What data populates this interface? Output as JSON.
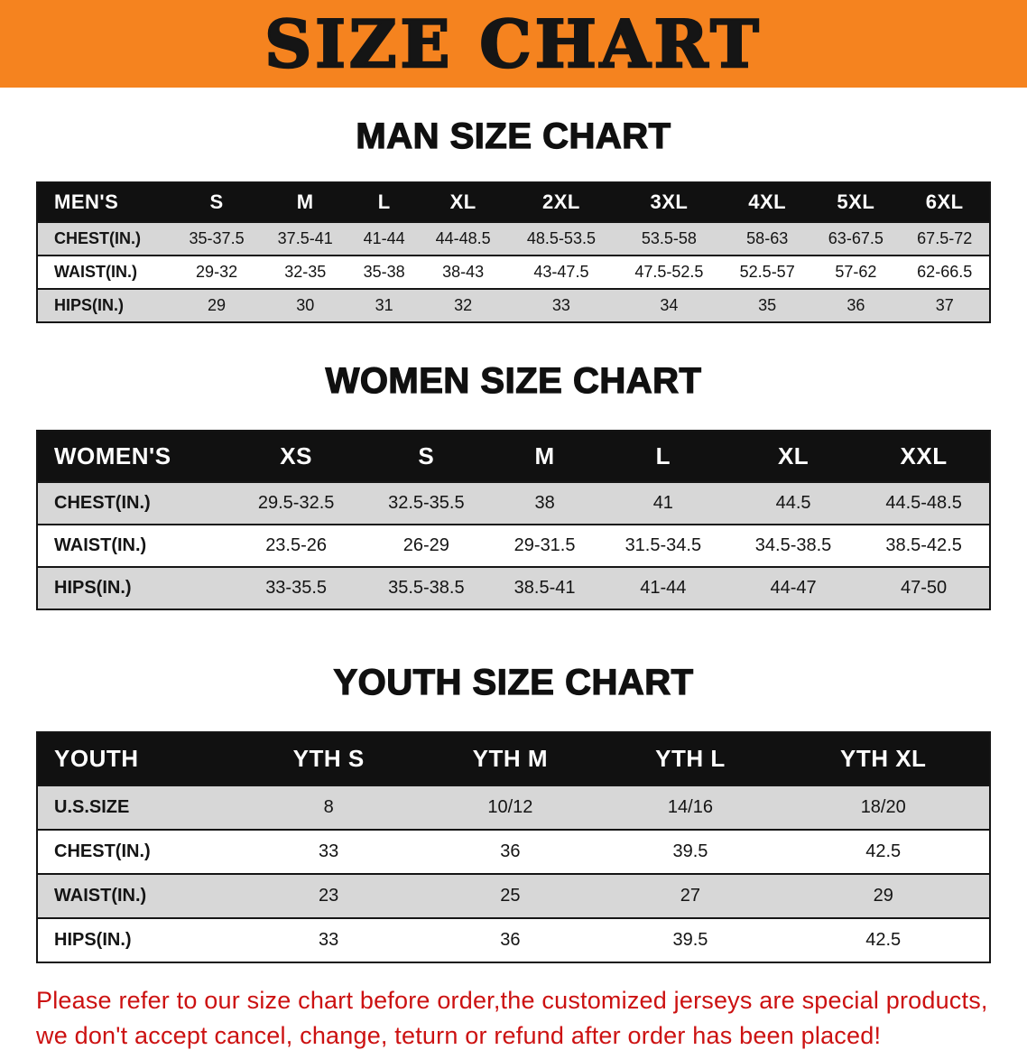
{
  "banner": {
    "title": "SIZE CHART",
    "background_color": "#F5831F"
  },
  "colors": {
    "table_header_bg": "#111111",
    "row_stripe": "#d7d7d7"
  },
  "sections": [
    {
      "key": "men",
      "heading": "MAN SIZE CHART",
      "table": {
        "header": [
          "MEN'S",
          "S",
          "M",
          "L",
          "XL",
          "2XL",
          "3XL",
          "4XL",
          "5XL",
          "6XL"
        ],
        "rows": [
          {
            "label": "CHEST(IN.)",
            "values": [
              "35-37.5",
              "37.5-41",
              "41-44",
              "44-48.5",
              "48.5-53.5",
              "53.5-58",
              "58-63",
              "63-67.5",
              "67.5-72"
            ]
          },
          {
            "label": "WAIST(IN.)",
            "values": [
              "29-32",
              "32-35",
              "35-38",
              "38-43",
              "43-47.5",
              "47.5-52.5",
              "52.5-57",
              "57-62",
              "62-66.5"
            ]
          },
          {
            "label": "HIPS(IN.)",
            "values": [
              "29",
              "30",
              "31",
              "32",
              "33",
              "34",
              "35",
              "36",
              "37"
            ]
          }
        ]
      }
    },
    {
      "key": "women",
      "heading": "WOMEN SIZE CHART",
      "table": {
        "header": [
          "WOMEN'S",
          "XS",
          "S",
          "M",
          "L",
          "XL",
          "XXL"
        ],
        "rows": [
          {
            "label": "CHEST(IN.)",
            "values": [
              "29.5-32.5",
              "32.5-35.5",
              "38",
              "41",
              "44.5",
              "44.5-48.5"
            ]
          },
          {
            "label": "WAIST(IN.)",
            "values": [
              "23.5-26",
              "26-29",
              "29-31.5",
              "31.5-34.5",
              "34.5-38.5",
              "38.5-42.5"
            ]
          },
          {
            "label": "HIPS(IN.)",
            "values": [
              "33-35.5",
              "35.5-38.5",
              "38.5-41",
              "41-44",
              "44-47",
              "47-50"
            ]
          }
        ]
      }
    },
    {
      "key": "youth",
      "heading": "YOUTH SIZE CHART",
      "table": {
        "header": [
          "YOUTH",
          "YTH S",
          "YTH M",
          "YTH L",
          "YTH XL"
        ],
        "rows": [
          {
            "label": "U.S.SIZE",
            "values": [
              "8",
              "10/12",
              "14/16",
              "18/20"
            ]
          },
          {
            "label": "CHEST(IN.)",
            "values": [
              "33",
              "36",
              "39.5",
              "42.5"
            ]
          },
          {
            "label": "WAIST(IN.)",
            "values": [
              "23",
              "25",
              "27",
              "29"
            ]
          },
          {
            "label": "HIPS(IN.)",
            "values": [
              "33",
              "36",
              "39.5",
              "42.5"
            ]
          }
        ]
      }
    }
  ],
  "disclaimer": {
    "color": "#cc1111",
    "lines": [
      "Please refer to our size chart before order,the customized jerseys are special products,",
      "we don't accept cancel, change, teturn or refund after order has been placed!"
    ]
  }
}
